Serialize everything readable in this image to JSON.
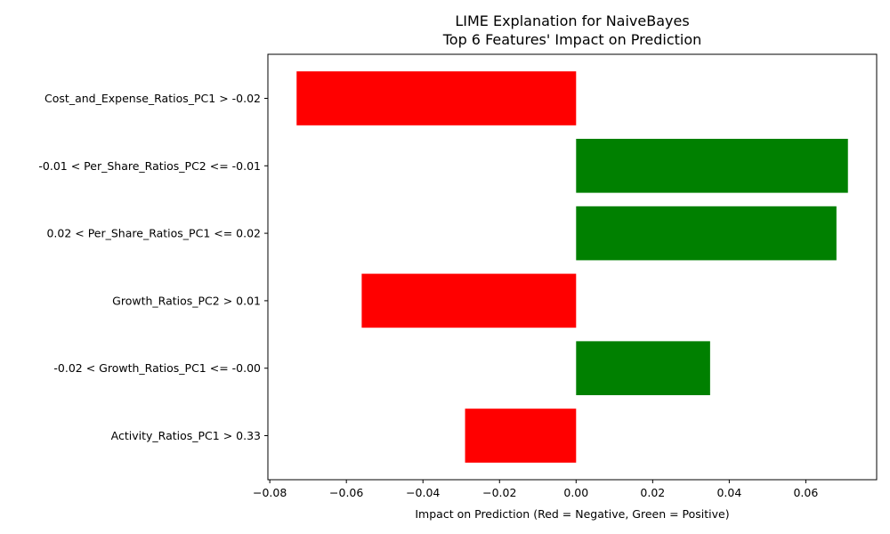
{
  "chart_data": {
    "type": "bar",
    "orientation": "horizontal",
    "title": "LIME Explanation for NaiveBayes",
    "subtitle": "Top 6 Features' Impact on Prediction",
    "xlabel": "Impact on Prediction (Red = Negative, Green = Positive)",
    "ylabel": "",
    "xlim": [
      -0.0805,
      0.0785
    ],
    "xticks": [
      -0.08,
      -0.06,
      -0.04,
      -0.02,
      0.0,
      0.02,
      0.04,
      0.06
    ],
    "xtick_labels": [
      "−0.08",
      "−0.06",
      "−0.04",
      "−0.02",
      "0.00",
      "0.02",
      "0.04",
      "0.06"
    ],
    "grid": false,
    "legend": "none",
    "categories": [
      "Cost_and_Expense_Ratios_PC1 > -0.02",
      "-0.01 < Per_Share_Ratios_PC2 <= -0.01",
      "0.02 < Per_Share_Ratios_PC1 <= 0.02",
      "Growth_Ratios_PC2 > 0.01",
      "-0.02 < Growth_Ratios_PC1 <= -0.00",
      "Activity_Ratios_PC1 > 0.33"
    ],
    "values": [
      -0.073,
      0.071,
      0.068,
      -0.056,
      0.035,
      -0.029
    ],
    "colors": {
      "negative": "#ff0000",
      "positive": "#008000"
    }
  }
}
